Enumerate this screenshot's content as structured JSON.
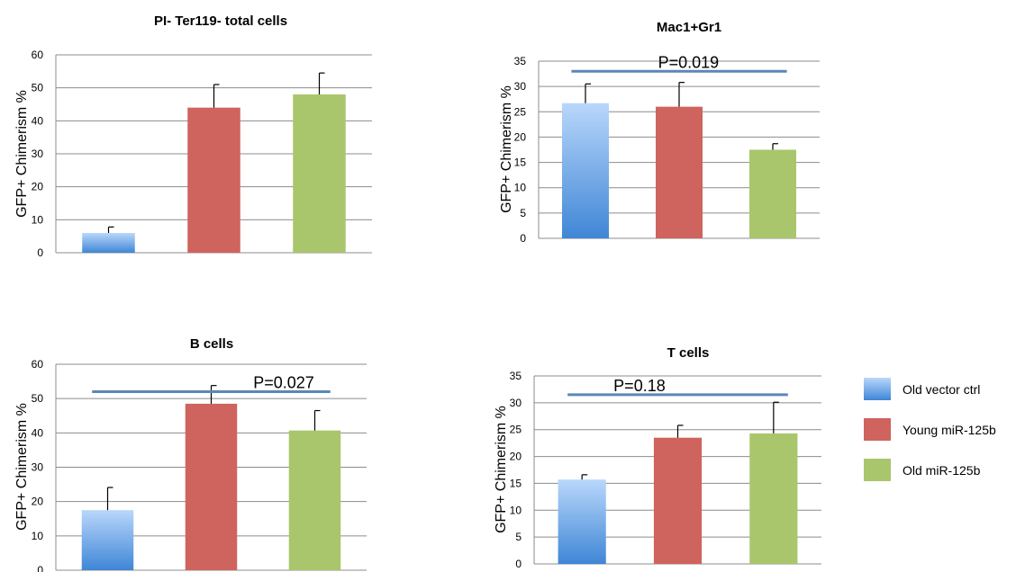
{
  "legend": {
    "items": [
      {
        "label": "Old vector ctrl",
        "color": "#4a8fd9",
        "key": "blue"
      },
      {
        "label": "Young miR-125b",
        "color": "#cf635d",
        "key": "red"
      },
      {
        "label": "Old miR-125b",
        "color": "#a9c66c",
        "key": "green"
      }
    ]
  },
  "chart_data": [
    {
      "type": "bar",
      "title": "PI- Ter119- total cells",
      "ylabel": "GFP+ Chimerism %",
      "ylim": [
        0,
        60
      ],
      "yticks": [
        0,
        10,
        20,
        30,
        40,
        50,
        60
      ],
      "categories": [
        "Old vector ctrl",
        "Young miR-125b",
        "Old miR-125b"
      ],
      "values": [
        6,
        44,
        48
      ],
      "errors": [
        1.8,
        7,
        6.5
      ],
      "significance": null,
      "grid": true
    },
    {
      "type": "bar",
      "title": "Mac1+Gr1",
      "ylabel": "GFP+ Chimerism %",
      "ylim": [
        0,
        35
      ],
      "yticks": [
        0,
        5,
        10,
        15,
        20,
        25,
        30,
        35
      ],
      "categories": [
        "Old vector ctrl",
        "Young miR-125b",
        "Old miR-125b"
      ],
      "values": [
        26.7,
        26,
        17.5
      ],
      "errors": [
        3.8,
        4.8,
        1.2
      ],
      "significance": {
        "label": "P=0.019",
        "y": 33
      },
      "grid": true
    },
    {
      "type": "bar",
      "title": "B cells",
      "ylabel": "GFP+ Chimerism %",
      "ylim": [
        0,
        60
      ],
      "yticks": [
        0,
        10,
        20,
        30,
        40,
        50,
        60
      ],
      "categories": [
        "Old vector ctrl",
        "Young miR-125b",
        "Old miR-125b"
      ],
      "values": [
        17.5,
        48.5,
        40.7
      ],
      "errors": [
        6.6,
        5.3,
        5.8
      ],
      "significance": {
        "label": "P=0.027",
        "y": 52
      },
      "grid": true
    },
    {
      "type": "bar",
      "title": "T cells",
      "ylabel": "GFP+ Chimerism %",
      "ylim": [
        0,
        35
      ],
      "yticks": [
        0,
        5,
        10,
        15,
        20,
        25,
        30,
        35
      ],
      "categories": [
        "Old vector ctrl",
        "Young miR-125b",
        "Old miR-125b"
      ],
      "values": [
        15.7,
        23.5,
        24.3
      ],
      "errors": [
        0.9,
        2.3,
        5.8
      ],
      "significance": {
        "label": "P=0.18",
        "y": 31.5
      },
      "grid": true
    }
  ]
}
